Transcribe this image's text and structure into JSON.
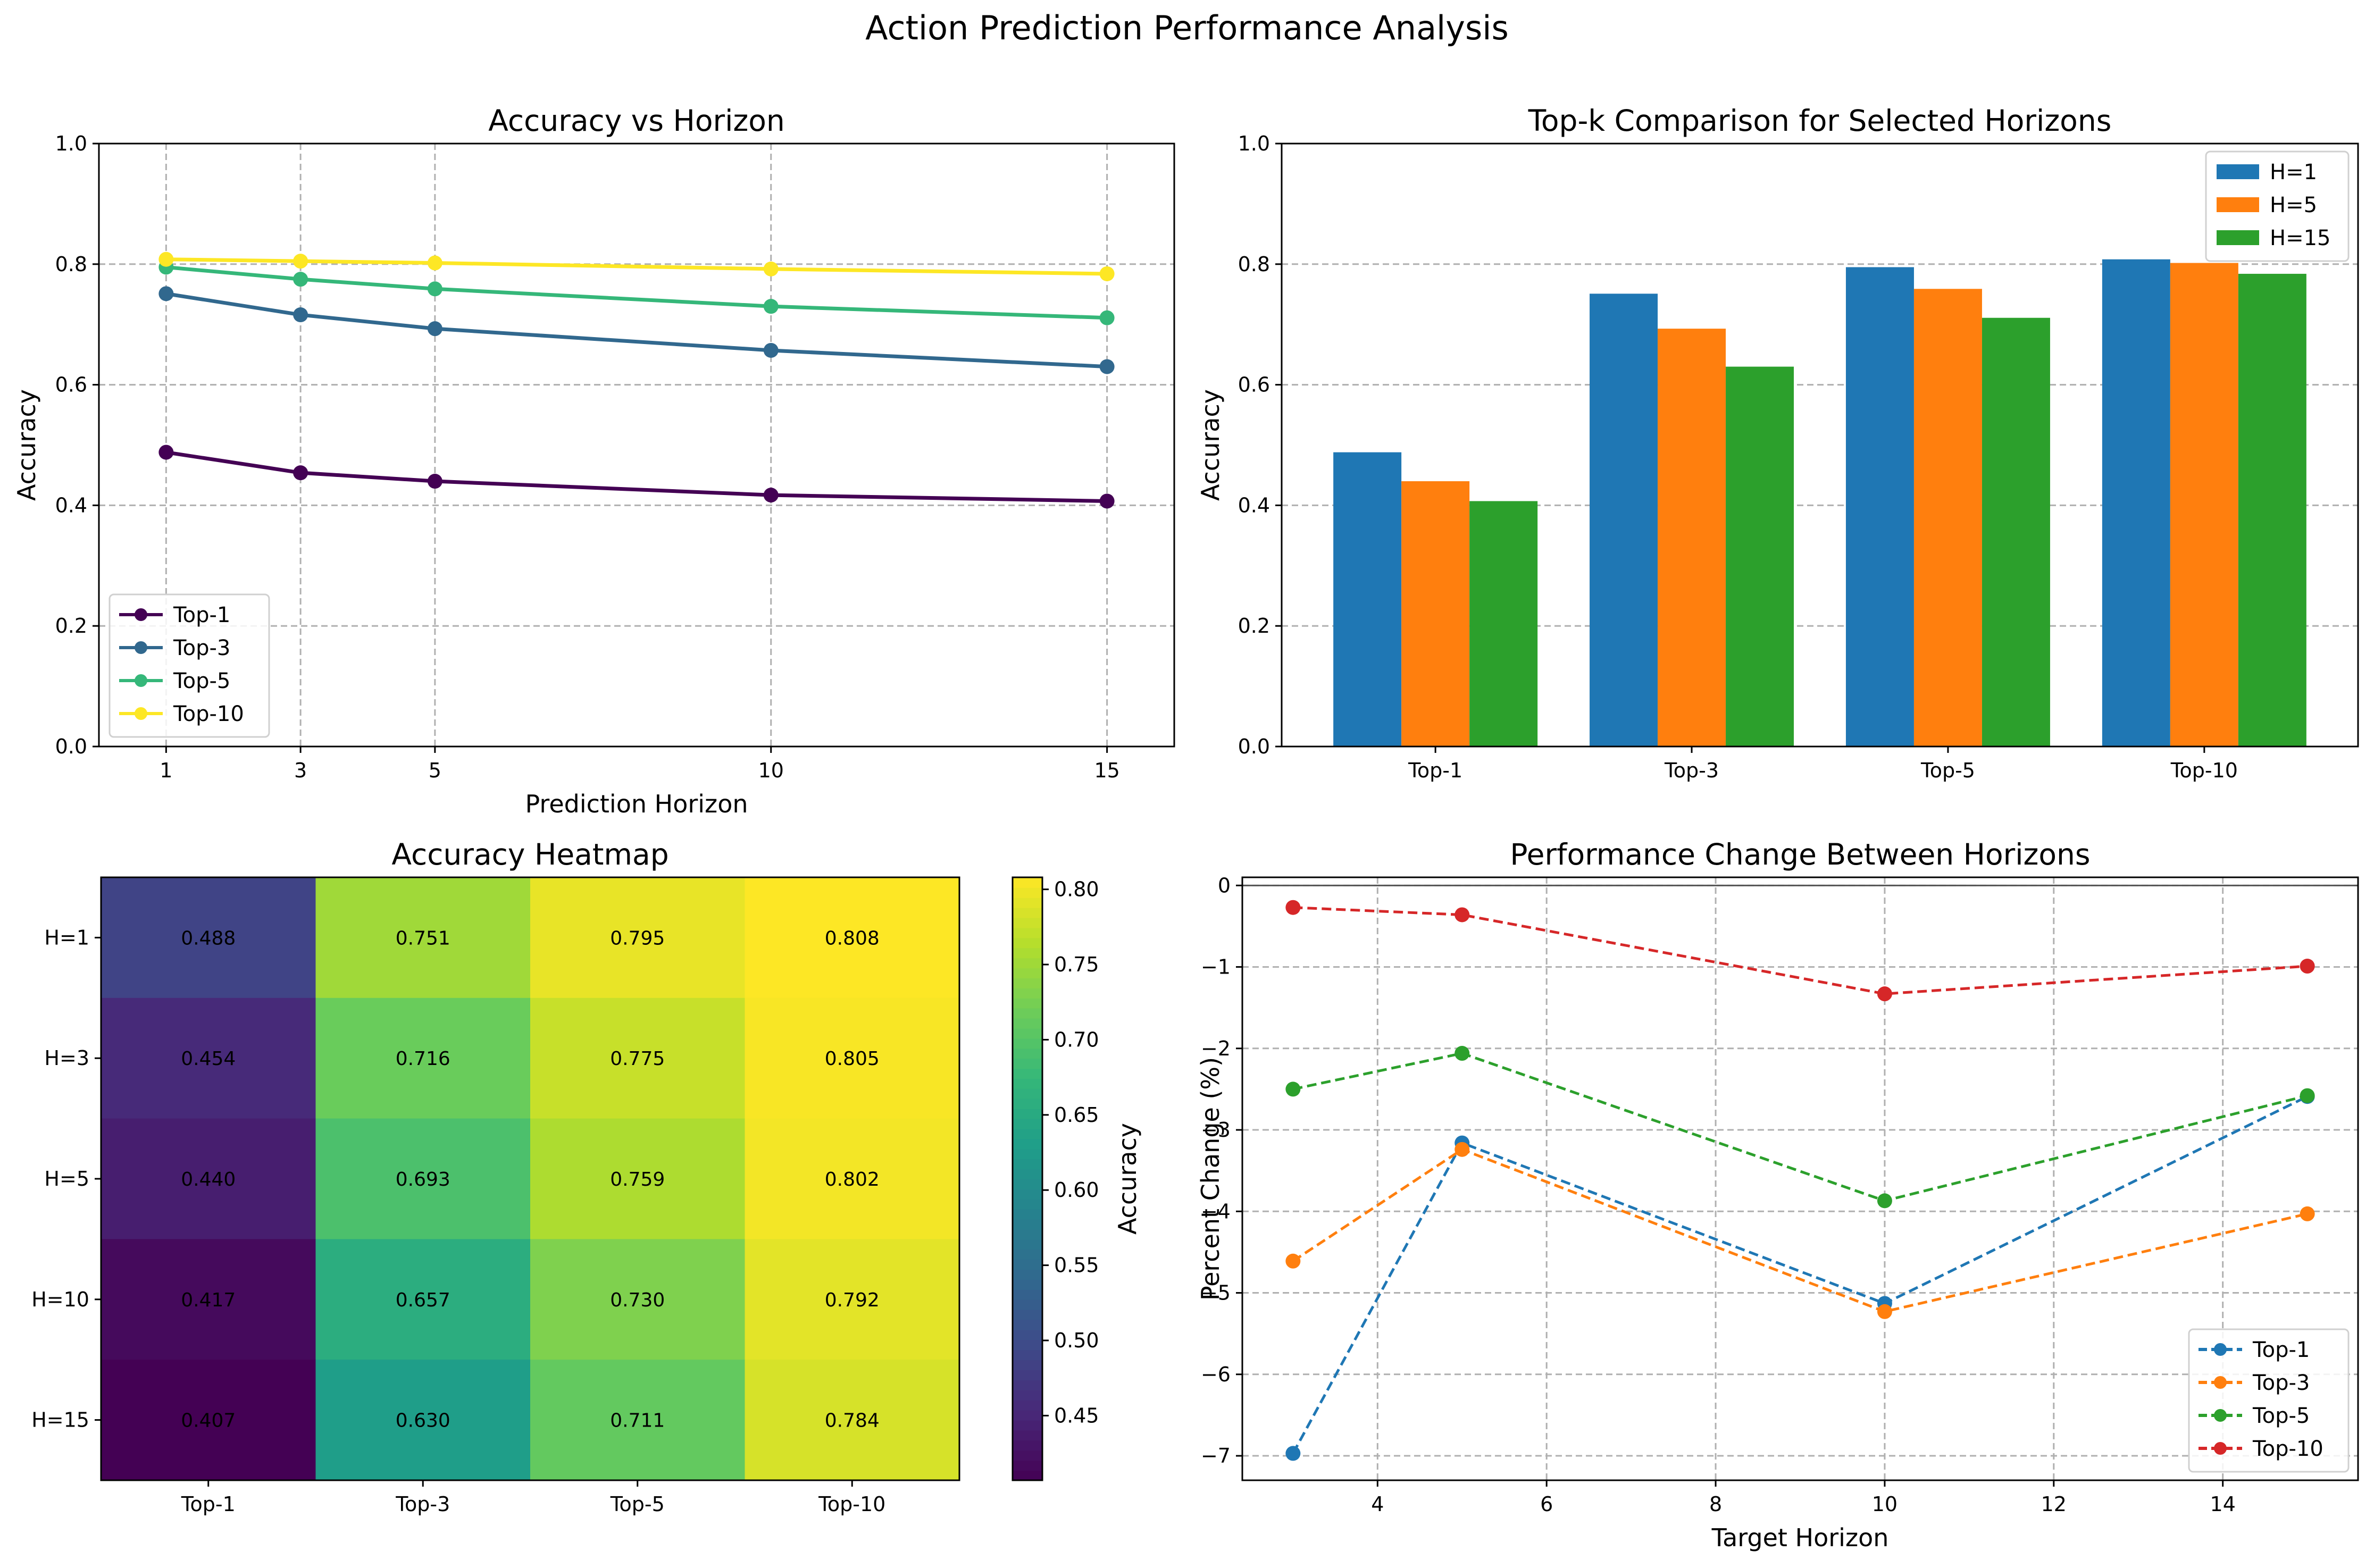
{
  "figure_title": "Action Prediction Performance Analysis",
  "chart_data": [
    {
      "type": "line",
      "title": "Accuracy vs Horizon",
      "xlabel": "Prediction Horizon",
      "ylabel": "Accuracy",
      "x": [
        1,
        3,
        5,
        10,
        15
      ],
      "xlim": [
        0,
        16
      ],
      "ylim": [
        0,
        1.0
      ],
      "xticks": [
        "1",
        "3",
        "5",
        "10",
        "15"
      ],
      "yticks": [
        "0.0",
        "0.2",
        "0.4",
        "0.6",
        "0.8",
        "1.0"
      ],
      "grid": true,
      "legend": "lower-left",
      "series": [
        {
          "name": "Top-1",
          "color": "#440154",
          "values": [
            0.488,
            0.454,
            0.44,
            0.417,
            0.407
          ]
        },
        {
          "name": "Top-3",
          "color": "#31688e",
          "values": [
            0.751,
            0.716,
            0.693,
            0.657,
            0.63
          ]
        },
        {
          "name": "Top-5",
          "color": "#35b779",
          "values": [
            0.795,
            0.775,
            0.759,
            0.73,
            0.711
          ]
        },
        {
          "name": "Top-10",
          "color": "#fde725",
          "values": [
            0.808,
            0.805,
            0.802,
            0.792,
            0.784
          ]
        }
      ]
    },
    {
      "type": "bar",
      "title": "Top-k Comparison for Selected Horizons",
      "xlabel": "",
      "ylabel": "Accuracy",
      "categories": [
        "Top-1",
        "Top-3",
        "Top-5",
        "Top-10"
      ],
      "ylim": [
        0,
        1.0
      ],
      "yticks": [
        "0.0",
        "0.2",
        "0.4",
        "0.6",
        "0.8",
        "1.0"
      ],
      "grid": true,
      "legend": "top-right",
      "series": [
        {
          "name": "H=1",
          "color": "#1f77b4",
          "values": [
            0.488,
            0.751,
            0.795,
            0.808
          ]
        },
        {
          "name": "H=5",
          "color": "#ff7f0e",
          "values": [
            0.44,
            0.693,
            0.759,
            0.802
          ]
        },
        {
          "name": "H=15",
          "color": "#2ca02c",
          "values": [
            0.407,
            0.63,
            0.711,
            0.784
          ]
        }
      ]
    },
    {
      "type": "heatmap",
      "title": "Accuracy Heatmap",
      "columns": [
        "Top-1",
        "Top-3",
        "Top-5",
        "Top-10"
      ],
      "rows": [
        "H=1",
        "H=3",
        "H=5",
        "H=10",
        "H=15"
      ],
      "values": [
        [
          "0.488",
          "0.751",
          "0.795",
          "0.808"
        ],
        [
          "0.454",
          "0.716",
          "0.775",
          "0.805"
        ],
        [
          "0.440",
          "0.693",
          "0.759",
          "0.802"
        ],
        [
          "0.417",
          "0.657",
          "0.730",
          "0.792"
        ],
        [
          "0.407",
          "0.630",
          "0.711",
          "0.784"
        ]
      ],
      "colorbar_label": "Accuracy",
      "colorbar_range": [
        0.407,
        0.808
      ],
      "colorbar_ticks": [
        "0.45",
        "0.50",
        "0.55",
        "0.60",
        "0.65",
        "0.70",
        "0.75",
        "0.80"
      ],
      "colormap": "viridis"
    },
    {
      "type": "line",
      "title": "Performance Change Between Horizons",
      "xlabel": "Target Horizon",
      "ylabel": "Percent Change (%)",
      "x": [
        3,
        5,
        10,
        15
      ],
      "xlim": [
        2.4,
        15.6
      ],
      "ylim": [
        -7.3,
        0.1
      ],
      "xticks": [
        "4",
        "6",
        "8",
        "10",
        "12",
        "14"
      ],
      "yticks": [
        "0",
        "−1",
        "−2",
        "−3",
        "−4",
        "−5",
        "−6",
        "−7"
      ],
      "grid": true,
      "legend": "lower-right",
      "series": [
        {
          "name": "Top-1",
          "color": "#1f77b4",
          "values": [
            -6.97,
            -3.16,
            -5.13,
            -2.59
          ]
        },
        {
          "name": "Top-3",
          "color": "#ff7f0e",
          "values": [
            -4.61,
            -3.24,
            -5.23,
            -4.03
          ]
        },
        {
          "name": "Top-5",
          "color": "#2ca02c",
          "values": [
            -2.5,
            -2.06,
            -3.87,
            -2.58
          ]
        },
        {
          "name": "Top-10",
          "color": "#d62728",
          "values": [
            -0.27,
            -0.36,
            -1.33,
            -0.99
          ]
        }
      ]
    }
  ]
}
